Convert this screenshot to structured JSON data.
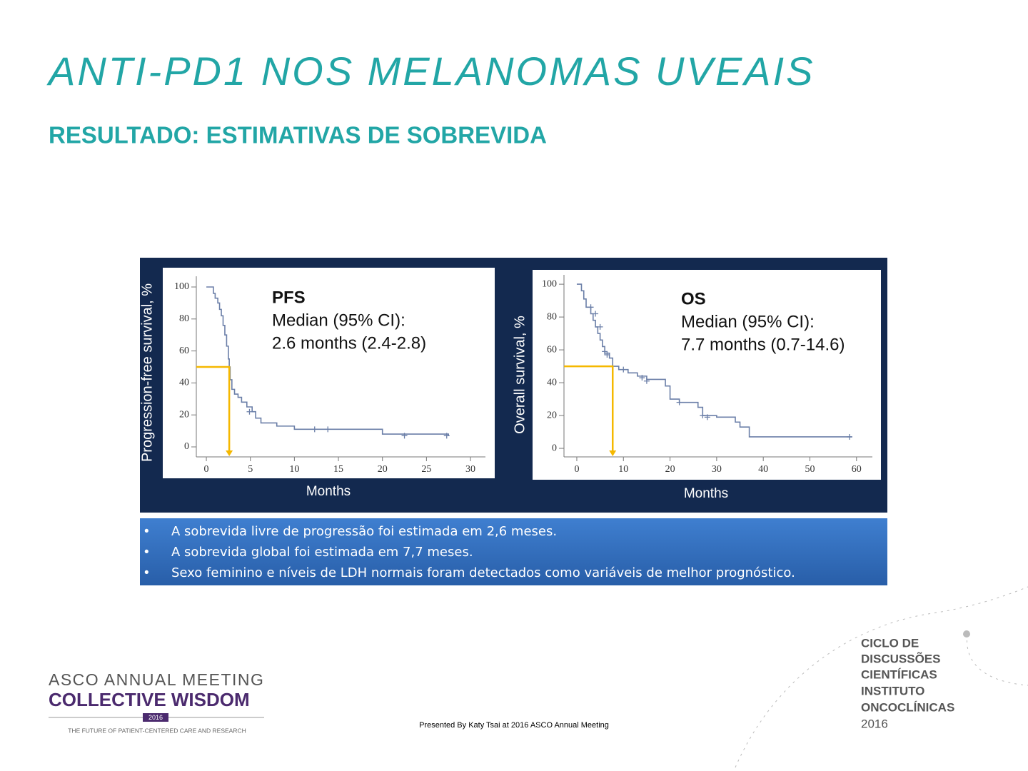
{
  "title": "ANTI-PD1 NOS MELANOMAS UVEAIS",
  "subtitle": "RESULTADO: ESTIMATIVAS DE SOBREVIDA",
  "bullets": [
    "A sobrevida livre de progressão foi estimada em 2,6 meses.",
    "A sobrevida global foi estimada em 7,7 meses.",
    "Sexo feminino e níveis de LDH normais foram detectados como variáveis de melhor prognóstico."
  ],
  "footer": "Presented By Katy Tsai at 2016 ASCO Annual Meeting",
  "asco_logo": {
    "line1": "ASCO ANNUAL MEETING",
    "line2": "COLLECTIVE WISDOM",
    "year": "2016",
    "tagline": "THE FUTURE OF PATIENT-CENTERED CARE AND RESEARCH"
  },
  "ciclo_logo": [
    "CICLO DE",
    "DISCUSSÕES",
    "CIENTÍFICAS",
    "INSTITUTO",
    "ONCOCLÍNICAS",
    "2016"
  ],
  "chart_data": [
    {
      "type": "line",
      "step": true,
      "color": "#6b7fa8",
      "annotation": [
        "PFS",
        "Median (95% CI):",
        "2.6 months (2.4-2.8)"
      ],
      "x_label": "Months",
      "y_label": "Progression-free survival, %",
      "x": [
        0,
        0.5,
        0.8,
        1,
        1.3,
        1.5,
        1.7,
        1.9,
        2.1,
        2.3,
        2.5,
        2.6,
        2.7,
        2.9,
        3.2,
        3.6,
        4,
        4.6,
        5.2,
        5.6,
        6.2,
        8,
        10,
        20,
        27.5
      ],
      "values": [
        100,
        100,
        96,
        93,
        90,
        86,
        82,
        76,
        70,
        63,
        55,
        50,
        42,
        36,
        33,
        31,
        28,
        25,
        22,
        18,
        15,
        13,
        11,
        8,
        7
      ],
      "censored_x": [
        4.9,
        12.3,
        13.8,
        22.5,
        27.3
      ],
      "censored_values": [
        22,
        11,
        11,
        7,
        7
      ],
      "median": {
        "x": 2.6,
        "y": 50,
        "color": "#f5b800"
      },
      "xlim": [
        -1.14,
        31.7
      ],
      "xticks": [
        0,
        5,
        10,
        15,
        20,
        25,
        30
      ],
      "ylim": [
        -6.25,
        106.7
      ],
      "yticks": [
        0,
        20,
        40,
        60,
        80,
        100
      ]
    },
    {
      "type": "line",
      "step": true,
      "color": "#6b7fa8",
      "annotation": [
        "OS",
        "Median (95% CI):",
        "7.7 months (0.7-14.6)"
      ],
      "x_label": "Months",
      "y_label": "Overall survival, %",
      "x": [
        0,
        1,
        1.5,
        2,
        3,
        3.5,
        4,
        4.5,
        5,
        5.5,
        6,
        7,
        7.7,
        9,
        11,
        13,
        15,
        19,
        20,
        22,
        26,
        27,
        30,
        34,
        35,
        37,
        59
      ],
      "values": [
        100,
        96,
        91,
        86,
        82,
        78,
        74,
        70,
        66,
        62,
        58,
        55,
        50,
        48,
        46,
        44,
        42,
        38,
        30,
        28,
        25,
        20,
        19,
        16,
        13,
        7,
        7
      ],
      "censored_x": [
        3,
        4,
        5,
        6,
        6.5,
        10,
        14,
        15,
        22,
        27,
        28,
        58.5
      ],
      "censored_values": [
        86,
        82,
        74,
        59,
        57,
        48,
        43,
        41,
        28,
        20,
        19,
        7
      ],
      "median": {
        "x": 7.7,
        "y": 50,
        "color": "#f5b800"
      },
      "xlim": [
        -2.75,
        63.4
      ],
      "xticks": [
        0,
        10,
        20,
        30,
        40,
        50,
        60
      ],
      "ylim": [
        -5.2,
        105.7
      ],
      "yticks": [
        0,
        20,
        40,
        60,
        80,
        100
      ]
    }
  ]
}
